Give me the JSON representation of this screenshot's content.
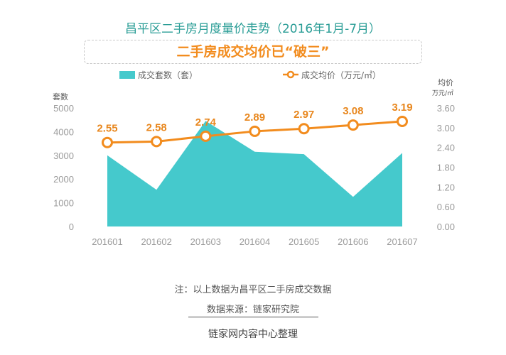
{
  "header": {
    "title": "昌平区二手房月度量价走势（2016年1月-7月）",
    "subtitle": "二手房成交均价已“破三”"
  },
  "legend": {
    "area_label": "成交套数（套）",
    "line_label": "成交均价（万元/㎡）"
  },
  "axes": {
    "left_title": "套数",
    "right_title_line1": "均价",
    "right_title_line2": "万元/㎡"
  },
  "colors": {
    "area": "#45c9cc",
    "line": "#f28c1e",
    "marker_fill": "#ffffff",
    "data_label": "#e8871e",
    "tick": "#9a9a9a"
  },
  "chart_data": {
    "type": "area",
    "categories": [
      "201601",
      "201602",
      "201603",
      "201604",
      "201605",
      "201606",
      "201607"
    ],
    "series": [
      {
        "name": "成交套数（套）",
        "type": "area",
        "axis": "left",
        "values": [
          3000,
          1550,
          4450,
          3150,
          3050,
          1250,
          3100
        ]
      },
      {
        "name": "成交均价（万元/㎡）",
        "type": "line",
        "axis": "right",
        "values": [
          2.55,
          2.58,
          2.74,
          2.89,
          2.97,
          3.08,
          3.19
        ],
        "labels": [
          "2.55",
          "2.58",
          "2.74",
          "2.89",
          "2.97",
          "3.08",
          "3.19"
        ]
      }
    ],
    "left_axis": {
      "min": 0,
      "max": 5000,
      "ticks": [
        "0",
        "1000",
        "2000",
        "3000",
        "4000",
        "5000"
      ]
    },
    "right_axis": {
      "min": 0,
      "max": 3.6,
      "ticks": [
        "0.00",
        "0.60",
        "1.20",
        "1.80",
        "2.40",
        "3.00",
        "3.60"
      ]
    },
    "grid": false,
    "legend_position": "top"
  },
  "footer": {
    "note": "注：以上数据为昌平区二手房成交数据",
    "source": "数据来源：链家研究院",
    "credit": "链家网内容中心整理"
  }
}
